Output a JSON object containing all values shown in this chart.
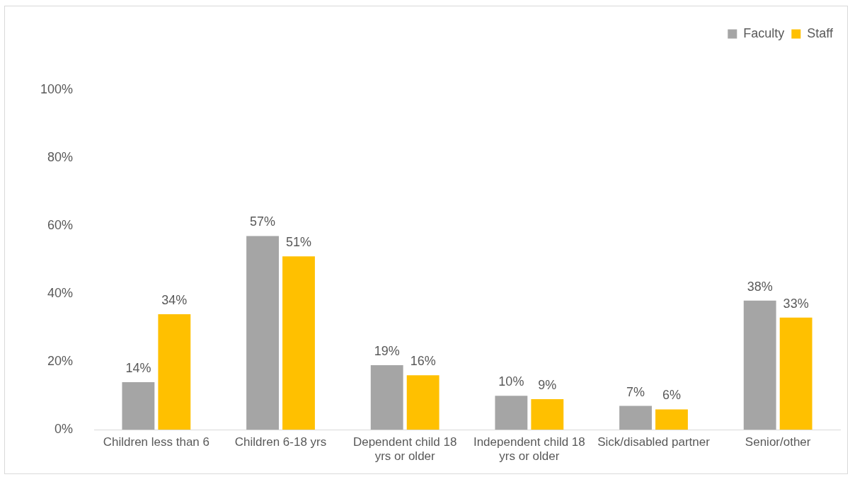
{
  "chart_data": {
    "type": "bar",
    "categories": [
      "Children less than 6",
      "Children 6-18 yrs",
      "Dependent child 18 yrs or older",
      "Independent child 18 yrs or older",
      "Sick/disabled partner",
      "Senior/other"
    ],
    "series": [
      {
        "name": "Faculty",
        "color": "#a5a5a5",
        "values": [
          14,
          57,
          19,
          10,
          7,
          38
        ],
        "value_labels": [
          "14%",
          "57%",
          "19%",
          "10%",
          "7%",
          "38%"
        ]
      },
      {
        "name": "Staff",
        "color": "#ffc000",
        "values": [
          34,
          51,
          16,
          9,
          6,
          33
        ],
        "value_labels": [
          "34%",
          "51%",
          "16%",
          "9%",
          "6%",
          "33%"
        ]
      }
    ],
    "ylim": [
      0,
      100
    ],
    "yticks": [
      {
        "value": 0,
        "label": "0%"
      },
      {
        "value": 20,
        "label": "20%"
      },
      {
        "value": 40,
        "label": "40%"
      },
      {
        "value": 60,
        "label": "60%"
      },
      {
        "value": 80,
        "label": "80%"
      },
      {
        "value": 100,
        "label": "100%"
      }
    ],
    "grid": false,
    "legend": "top right"
  }
}
